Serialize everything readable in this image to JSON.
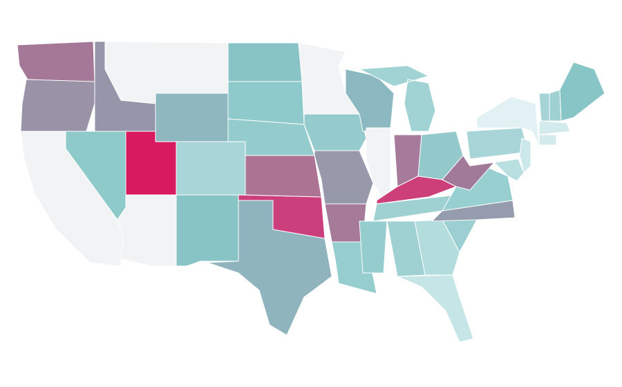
{
  "map": {
    "regions": [
      {
        "color": "#a67897"
      },
      {
        "color": "#9a93a8"
      },
      {
        "color": "#9596aa"
      },
      {
        "color": "#f2f3f5"
      },
      {
        "color": "#8fb7c0"
      },
      {
        "color": "#88c4c6"
      },
      {
        "color": "#8ec9cb"
      },
      {
        "color": "#94cbcd"
      },
      {
        "color": "#a8d6d8"
      },
      {
        "color": "#d81b60"
      },
      {
        "color": "#8fcaca"
      },
      {
        "color": "#f2f3f5"
      },
      {
        "color": "#f2f3f5"
      },
      {
        "color": "#88c4c6"
      },
      {
        "color": "#8fb4bd"
      },
      {
        "color": "#ca3f7c"
      },
      {
        "color": "#ad7393"
      },
      {
        "color": "#95cbcd"
      },
      {
        "color": "#f2f3f5"
      },
      {
        "color": "#8cb9c1"
      },
      {
        "color": "#9799ab"
      },
      {
        "color": "#a67b99"
      },
      {
        "color": "#96cdcf"
      },
      {
        "color": "#f2f3f5"
      },
      {
        "color": "#a1d3d5"
      },
      {
        "color": "#a57a9a"
      },
      {
        "color": "#93c9cb"
      },
      {
        "color": "#cc3f78"
      },
      {
        "color": "#9fd0d2"
      },
      {
        "color": "#95cccd"
      },
      {
        "color": "#9fd0d2"
      },
      {
        "color": "#b3dcdd"
      },
      {
        "color": "#c6e5e7"
      },
      {
        "color": "#9ccfd1"
      },
      {
        "color": "#959cae"
      },
      {
        "color": "#98cfd0"
      },
      {
        "color": "#a17a9a"
      },
      {
        "color": "#a8d6d8"
      },
      {
        "color": "#e2f1f3"
      },
      {
        "color": "#cde8ea"
      },
      {
        "color": "#b9dfe1"
      },
      {
        "color": "#a6d4d6"
      },
      {
        "color": "#9fd1d3"
      },
      {
        "color": "#88c5c7"
      },
      {
        "color": "#d4ebed"
      },
      {
        "color": "#d4ebed"
      }
    ]
  }
}
